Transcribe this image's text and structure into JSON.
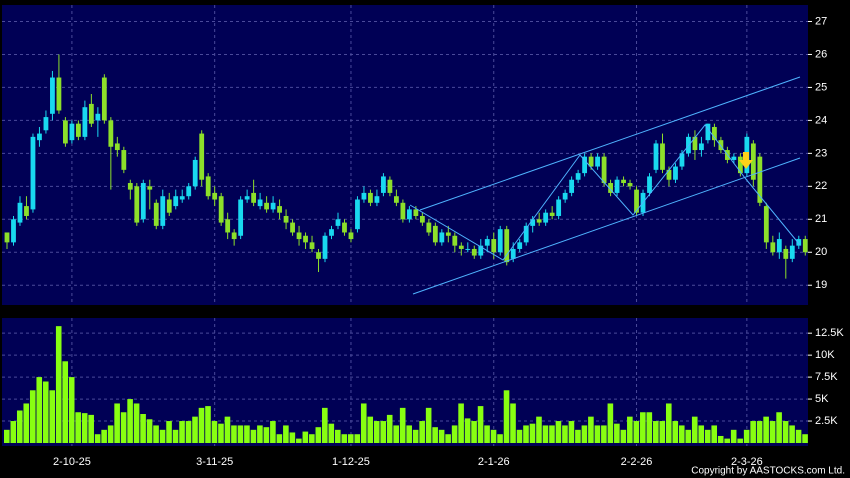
{
  "chart_data": [
    {
      "type": "candlestick",
      "up_color": "#19d9f0",
      "down_color": "#8de02a",
      "grid": true,
      "ylim": [
        18.4,
        27.5
      ],
      "yticks": [
        19,
        20,
        21,
        22,
        23,
        24,
        25,
        26,
        27
      ],
      "categories": [
        null,
        null,
        null,
        null,
        null,
        null,
        null,
        null,
        null,
        null,
        "2-10-25",
        null,
        null,
        null,
        null,
        null,
        null,
        null,
        null,
        null,
        null,
        null,
        null,
        null,
        null,
        null,
        null,
        null,
        null,
        null,
        null,
        null,
        "3-11-25",
        null,
        null,
        null,
        null,
        null,
        null,
        null,
        null,
        null,
        null,
        null,
        null,
        null,
        null,
        null,
        null,
        null,
        null,
        null,
        null,
        "1-12-25",
        null,
        null,
        null,
        null,
        null,
        null,
        null,
        null,
        null,
        null,
        null,
        null,
        null,
        null,
        null,
        null,
        null,
        null,
        null,
        null,
        null,
        "2-1-26",
        null,
        null,
        null,
        null,
        null,
        null,
        null,
        null,
        null,
        null,
        null,
        null,
        null,
        null,
        null,
        null,
        null,
        null,
        null,
        null,
        null,
        "2-2-26",
        null,
        null,
        null,
        null,
        null,
        null,
        null,
        null,
        null,
        null,
        null,
        null,
        null,
        null,
        null,
        null,
        "2-3-26",
        null,
        null,
        null,
        null,
        null,
        null,
        null,
        null,
        null
      ],
      "open": [
        20.6,
        20.3,
        20.9,
        21.4,
        21.3,
        23.4,
        23.7,
        24.2,
        25.3,
        24.0,
        23.4,
        23.9,
        23.5,
        24.5,
        24.0,
        25.3,
        24.0,
        23.3,
        23.1,
        22.1,
        22.0,
        21.0,
        22.0,
        21.5,
        20.8,
        21.6,
        21.4,
        21.6,
        21.7,
        22.0,
        23.6,
        22.3,
        21.8,
        21.7,
        21.0,
        20.6,
        20.5,
        21.6,
        21.8,
        21.4,
        21.5,
        21.3,
        21.4,
        21.1,
        20.9,
        20.6,
        20.5,
        20.3,
        20.0,
        19.8,
        20.5,
        20.8,
        20.9,
        20.6,
        20.7,
        21.6,
        21.8,
        21.5,
        21.8,
        22.2,
        21.7,
        21.5,
        21.0,
        21.3,
        21.1,
        20.9,
        20.8,
        20.3,
        20.6,
        20.5,
        20.2,
        20.1,
        20.1,
        19.9,
        20.2,
        20.4,
        20.0,
        20.7,
        19.8,
        20.1,
        20.3,
        20.8,
        21.0,
        20.9,
        21.2,
        21.1,
        21.6,
        21.8,
        22.2,
        22.4,
        22.9,
        22.6,
        22.9,
        22.1,
        21.8,
        22.2,
        22.1,
        21.9,
        21.2,
        21.8,
        22.5,
        23.3,
        22.5,
        22.2,
        22.6,
        23.0,
        23.5,
        23.1,
        23.4,
        23.8,
        23.4,
        23.1,
        22.8,
        22.9,
        22.4,
        23.3,
        22.9,
        21.4,
        20.3,
        20.0,
        20.1,
        19.8,
        20.2,
        20.4
      ],
      "high": [
        20.6,
        21.1,
        21.7,
        21.7,
        23.6,
        23.8,
        24.3,
        25.5,
        26.0,
        24.1,
        24.0,
        24.0,
        24.6,
        24.8,
        24.4,
        25.4,
        24.1,
        23.5,
        23.2,
        22.2,
        22.1,
        22.2,
        22.2,
        21.6,
        21.9,
        21.8,
        21.9,
        21.9,
        22.1,
        22.9,
        23.7,
        22.4,
        22.0,
        21.8,
        21.2,
        20.7,
        21.7,
        21.9,
        22.2,
        21.8,
        21.7,
        21.7,
        21.6,
        21.3,
        21.0,
        20.8,
        20.6,
        20.5,
        20.1,
        20.6,
        20.8,
        21.2,
        21.0,
        20.7,
        21.7,
        22.0,
        21.9,
        21.9,
        22.4,
        22.3,
        21.9,
        21.6,
        21.4,
        21.4,
        21.2,
        21.0,
        20.9,
        20.7,
        20.8,
        20.6,
        20.3,
        20.3,
        20.2,
        20.4,
        20.5,
        20.6,
        20.8,
        20.8,
        20.3,
        20.4,
        20.9,
        21.1,
        21.2,
        21.3,
        21.4,
        21.7,
        21.9,
        22.3,
        22.5,
        23.0,
        23.0,
        23.0,
        23.0,
        22.2,
        22.3,
        22.3,
        22.2,
        22.0,
        21.9,
        22.4,
        23.4,
        23.6,
        22.6,
        22.7,
        23.1,
        23.6,
        23.7,
        23.5,
        23.9,
        23.9,
        23.5,
        23.2,
        23.0,
        23.0,
        23.6,
        23.4,
        23.0,
        21.5,
        20.5,
        20.6,
        20.2,
        20.4,
        20.5,
        20.5
      ],
      "low": [
        20.1,
        20.2,
        20.8,
        21.0,
        21.2,
        23.2,
        23.6,
        24.0,
        24.2,
        23.2,
        23.3,
        23.4,
        23.4,
        23.8,
        23.5,
        23.9,
        21.9,
        22.9,
        22.4,
        21.6,
        20.8,
        20.9,
        21.3,
        20.7,
        20.7,
        21.1,
        21.3,
        21.5,
        21.6,
        21.9,
        22.0,
        21.6,
        21.4,
        20.8,
        20.4,
        20.2,
        20.4,
        21.5,
        21.4,
        21.3,
        21.2,
        21.2,
        21.0,
        20.7,
        20.5,
        20.2,
        20.1,
        20.0,
        19.4,
        19.7,
        20.4,
        20.7,
        20.5,
        20.3,
        20.6,
        21.5,
        21.4,
        21.4,
        21.7,
        21.7,
        21.4,
        20.9,
        20.9,
        21.0,
        20.8,
        20.5,
        20.2,
        20.2,
        20.3,
        20.0,
        19.9,
        20.0,
        19.8,
        19.8,
        20.0,
        19.8,
        19.9,
        19.6,
        19.7,
        20.0,
        20.2,
        20.6,
        20.8,
        20.8,
        21.0,
        21.0,
        21.5,
        21.7,
        22.1,
        22.3,
        22.5,
        22.5,
        22.0,
        21.7,
        21.7,
        22.0,
        21.9,
        21.1,
        21.1,
        21.7,
        22.4,
        22.4,
        22.0,
        22.1,
        22.5,
        22.9,
        22.8,
        22.9,
        23.3,
        23.2,
        23.0,
        22.7,
        22.7,
        22.3,
        22.3,
        22.0,
        21.4,
        20.1,
        19.9,
        19.8,
        19.2,
        19.7,
        20.1,
        19.9
      ],
      "close": [
        20.3,
        21.0,
        21.5,
        21.1,
        23.5,
        23.6,
        24.1,
        25.3,
        24.3,
        23.3,
        23.9,
        23.5,
        24.4,
        23.9,
        24.2,
        24.0,
        23.2,
        23.1,
        22.5,
        21.9,
        20.9,
        22.1,
        21.9,
        20.8,
        21.7,
        21.2,
        21.7,
        21.7,
        22.0,
        22.8,
        22.2,
        21.7,
        21.6,
        20.9,
        20.6,
        20.4,
        21.6,
        21.7,
        21.5,
        21.6,
        21.3,
        21.5,
        21.2,
        20.9,
        20.6,
        20.4,
        20.3,
        20.1,
        19.8,
        20.5,
        20.7,
        21.0,
        20.6,
        20.4,
        21.6,
        21.8,
        21.5,
        21.7,
        22.3,
        21.8,
        21.5,
        21.0,
        21.3,
        21.1,
        20.9,
        20.6,
        20.3,
        20.6,
        20.5,
        20.2,
        20.1,
        20.1,
        19.9,
        20.2,
        20.4,
        20.0,
        20.7,
        19.7,
        20.1,
        20.3,
        20.8,
        21.0,
        20.9,
        21.2,
        21.1,
        21.6,
        21.8,
        22.2,
        22.4,
        22.9,
        22.6,
        22.9,
        22.1,
        21.8,
        22.2,
        22.1,
        22.0,
        21.2,
        21.8,
        22.3,
        23.3,
        22.5,
        22.2,
        22.6,
        23.0,
        23.5,
        23.1,
        23.3,
        23.9,
        23.4,
        23.1,
        22.8,
        22.9,
        22.4,
        23.5,
        22.2,
        21.5,
        20.3,
        20.0,
        20.4,
        19.8,
        20.2,
        20.4,
        20.0
      ]
    },
    {
      "type": "bar",
      "color": "#88ff11",
      "grid": true,
      "ylim": [
        0,
        14000
      ],
      "yticks": [
        {
          "value": 2500,
          "label": "2.5K"
        },
        {
          "value": 5000,
          "label": "5K"
        },
        {
          "value": 7500,
          "label": "7.5K"
        },
        {
          "value": 10000,
          "label": "10K"
        },
        {
          "value": 12500,
          "label": "12.5K"
        }
      ],
      "values": [
        1500,
        2500,
        3700,
        4500,
        6000,
        7500,
        7000,
        6000,
        13300,
        9300,
        7500,
        3500,
        3400,
        3200,
        1000,
        1500,
        2000,
        4500,
        3500,
        5000,
        4500,
        3300,
        2700,
        2000,
        1500,
        2500,
        1500,
        2500,
        2500,
        3000,
        4000,
        4200,
        2500,
        2200,
        3000,
        2000,
        2000,
        2000,
        1500,
        2000,
        1800,
        2500,
        1000,
        2000,
        1200,
        500,
        1300,
        1000,
        1800,
        4000,
        2200,
        1500,
        1000,
        1000,
        1000,
        4500,
        3000,
        2500,
        2500,
        3200,
        2000,
        4000,
        2000,
        1500,
        2500,
        4000,
        1800,
        1500,
        1000,
        2000,
        4500,
        2800,
        2500,
        4200,
        2000,
        1500,
        1000,
        6000,
        4500,
        1500,
        2000,
        2200,
        3000,
        2000,
        2000,
        2500,
        2000,
        2500,
        1500,
        2000,
        3000,
        2000,
        2000,
        4500,
        2200,
        1500,
        3000,
        2500,
        3500,
        3500,
        2500,
        2500,
        4500,
        2500,
        2000,
        1500,
        3000,
        2000,
        1500,
        2000,
        800,
        500,
        1500,
        500,
        1500,
        2500,
        2500,
        3000,
        2500,
        3500,
        2500,
        2000,
        1500,
        1000
      ]
    }
  ],
  "copyright": "Copyright by AASTOCKS.com Ltd."
}
